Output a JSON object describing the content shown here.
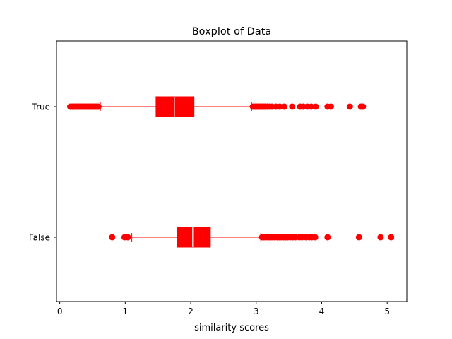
{
  "chart_data": {
    "type": "boxplot",
    "orientation": "horizontal",
    "title": "Boxplot of Data",
    "xlabel": "similarity scores",
    "ylabel": "",
    "xlim": [
      -0.05,
      5.3
    ],
    "xticks": [
      0,
      1,
      2,
      3,
      4,
      5
    ],
    "xtick_labels": [
      "0",
      "1",
      "2",
      "3",
      "4",
      "5"
    ],
    "grid": false,
    "color": "#ff0000",
    "categories": [
      "True",
      "False"
    ],
    "boxes": [
      {
        "category": "True",
        "whisker_low": 0.62,
        "q1": 1.47,
        "median": 1.75,
        "q3": 2.05,
        "whisker_high": 2.93,
        "outliers": [
          0.16,
          0.19,
          0.21,
          0.23,
          0.25,
          0.27,
          0.29,
          0.31,
          0.33,
          0.35,
          0.37,
          0.39,
          0.41,
          0.43,
          0.45,
          0.47,
          0.49,
          0.51,
          0.53,
          0.55,
          0.57,
          0.59,
          2.95,
          2.98,
          3.0,
          3.02,
          3.04,
          3.06,
          3.08,
          3.1,
          3.12,
          3.14,
          3.17,
          3.2,
          3.24,
          3.3,
          3.36,
          3.43,
          3.55,
          3.67,
          3.72,
          3.78,
          3.84,
          3.91,
          4.09,
          4.14,
          4.43,
          4.6,
          4.63
        ]
      },
      {
        "category": "False",
        "whisker_low": 1.1,
        "q1": 1.79,
        "median": 2.03,
        "q3": 2.3,
        "whisker_high": 3.07,
        "outliers": [
          0.8,
          0.99,
          1.04,
          3.09,
          3.12,
          3.15,
          3.18,
          3.21,
          3.24,
          3.28,
          3.32,
          3.35,
          3.38,
          3.42,
          3.45,
          3.48,
          3.52,
          3.56,
          3.6,
          3.66,
          3.7,
          3.76,
          3.81,
          3.85,
          3.9,
          4.09,
          4.57,
          4.9,
          5.06
        ]
      }
    ]
  }
}
